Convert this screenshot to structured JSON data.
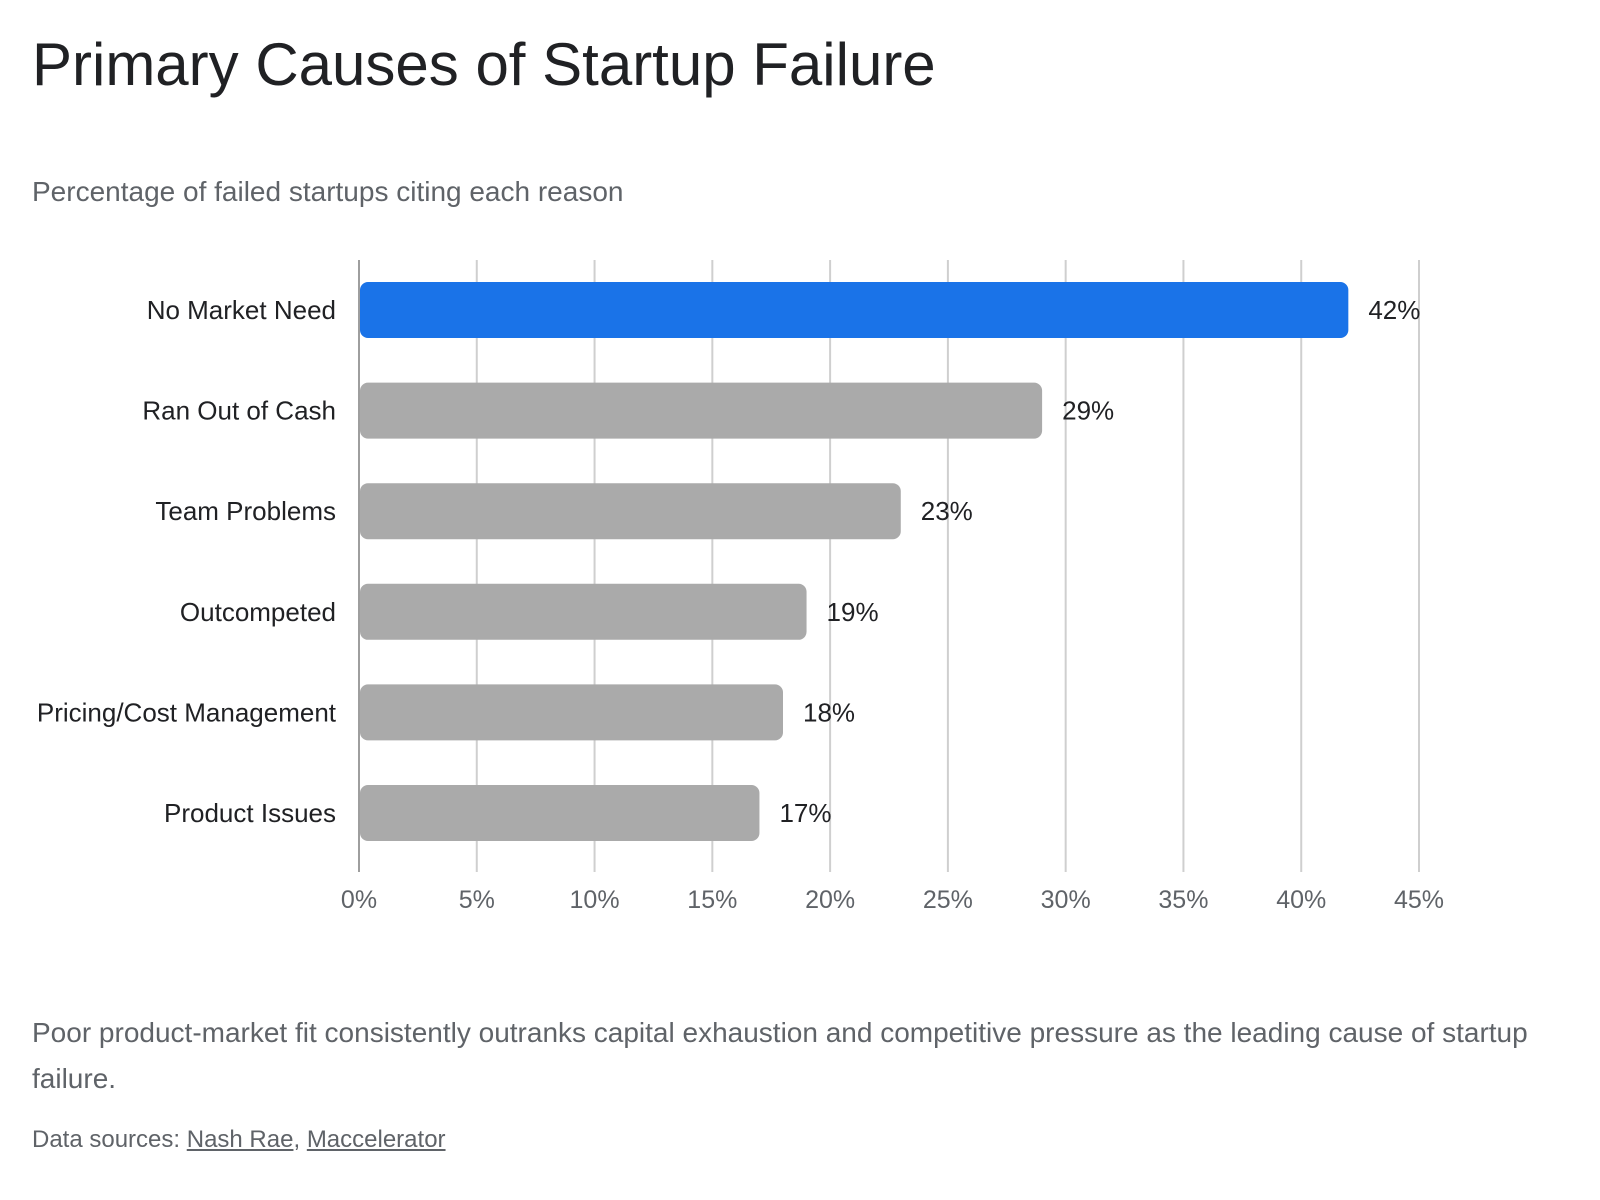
{
  "chart_data": {
    "type": "bar",
    "orientation": "horizontal",
    "title": "Primary Causes of Startup Failure",
    "subtitle": "Percentage of failed startups citing each reason",
    "categories": [
      "No Market Need",
      "Ran Out of Cash",
      "Team Problems",
      "Outcompeted",
      "Pricing/Cost Management",
      "Product Issues"
    ],
    "values": [
      42,
      29,
      23,
      19,
      18,
      17
    ],
    "value_labels": [
      "42%",
      "29%",
      "23%",
      "19%",
      "18%",
      "17%"
    ],
    "highlighted_category": "No Market Need",
    "xlim": [
      0,
      45
    ],
    "x_ticks": [
      "0%",
      "5%",
      "10%",
      "15%",
      "20%",
      "25%",
      "30%",
      "35%",
      "40%",
      "45%"
    ],
    "xlabel": "",
    "ylabel": "",
    "grid": true,
    "colors": {
      "highlight": "#1a73e8",
      "default": "#aaaaaa",
      "grid": "#cfcfcf",
      "axis": "#9e9e9e",
      "label": "#202124",
      "tick": "#5f6368"
    }
  },
  "caption": "Poor product-market fit consistently outranks capital exhaustion and competitive pressure as the leading cause of startup failure.",
  "sources": {
    "prefix": "Data sources: ",
    "links": [
      "Nash Rae",
      "Maccelerator"
    ],
    "separator": ", "
  }
}
